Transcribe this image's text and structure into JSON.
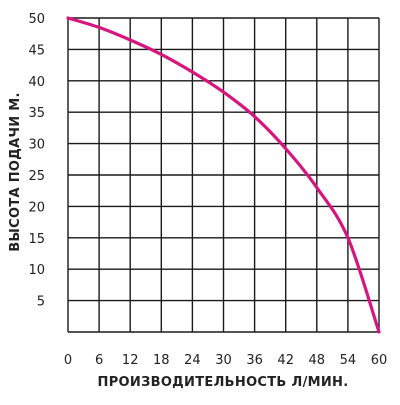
{
  "chart_data": {
    "type": "line",
    "title": "",
    "xlabel": "ПРОИЗВОДИТЕЛЬНОСТЬ Л/МИН.",
    "ylabel": "ВЫСОТА ПОДАЧИ М.",
    "xlim": [
      0,
      60
    ],
    "ylim": [
      0,
      50
    ],
    "x_ticks": [
      0,
      6,
      12,
      18,
      24,
      30,
      36,
      42,
      48,
      54,
      60
    ],
    "y_ticks": [
      5,
      10,
      15,
      20,
      25,
      30,
      35,
      40,
      45,
      50
    ],
    "grid": true,
    "legend": "none",
    "series": [
      {
        "color": "#d6157e",
        "x": [
          0,
          6,
          12,
          18,
          24,
          30,
          36,
          42,
          48,
          54,
          60
        ],
        "y": [
          50,
          48.5,
          46.5,
          44.2,
          41.4,
          38.2,
          34.3,
          29.2,
          23,
          15,
          0
        ]
      }
    ]
  }
}
